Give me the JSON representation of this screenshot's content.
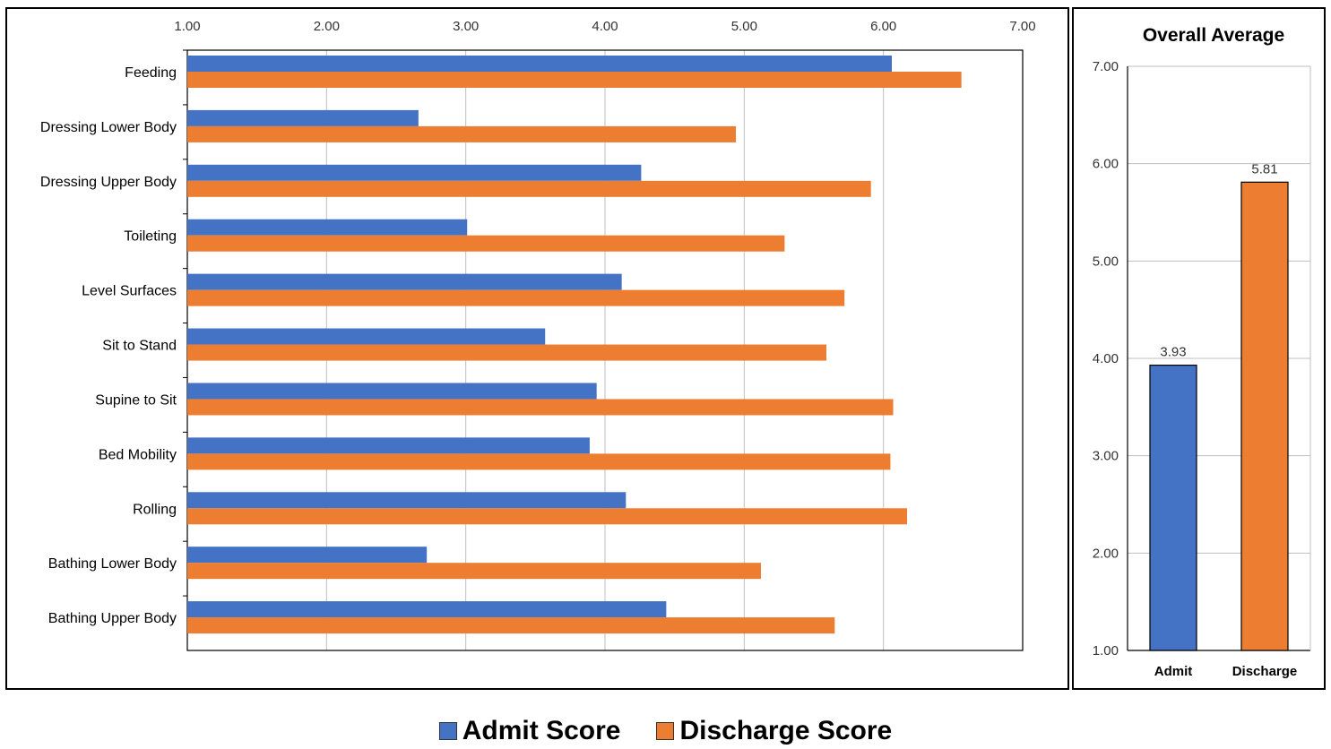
{
  "colors": {
    "admit": "#4472C4",
    "discharge": "#ED7D31",
    "grid": "#BFBFBF"
  },
  "chart_data": [
    {
      "type": "bar",
      "orientation": "horizontal",
      "categories": [
        "Feeding",
        "Dressing Lower Body",
        "Dressing Upper Body",
        "Toileting",
        "Level Surfaces",
        "Sit to Stand",
        "Supine to Sit",
        "Bed Mobility",
        "Rolling",
        "Bathing Lower Body",
        "Bathing Upper Body"
      ],
      "series": [
        {
          "name": "Admit Score",
          "values": [
            6.06,
            2.66,
            4.26,
            3.01,
            4.12,
            3.57,
            3.94,
            3.89,
            4.15,
            2.72,
            4.44
          ]
        },
        {
          "name": "Discharge Score",
          "values": [
            6.56,
            4.94,
            5.91,
            5.29,
            5.72,
            5.59,
            6.07,
            6.05,
            6.17,
            5.12,
            5.65
          ]
        }
      ],
      "xlim": [
        1,
        7
      ],
      "tick_labels": [
        "1.00",
        "2.00",
        "3.00",
        "4.00",
        "5.00",
        "6.00",
        "7.00"
      ],
      "grid": true,
      "xaxis_position": "top"
    },
    {
      "type": "bar",
      "title": "Overall Average",
      "categories": [
        "Admit",
        "Discharge"
      ],
      "values": [
        3.93,
        5.81
      ],
      "data_labels": [
        "3.93",
        "5.81"
      ],
      "ylim": [
        1,
        7
      ],
      "tick_labels": [
        "1.00",
        "2.00",
        "3.00",
        "4.00",
        "5.00",
        "6.00",
        "7.00"
      ],
      "grid": true
    }
  ],
  "legend": {
    "placement": "bottom",
    "items": [
      {
        "label": "Admit Score",
        "color": "#4472C4"
      },
      {
        "label": "Discharge Score",
        "color": "#ED7D31"
      }
    ]
  }
}
